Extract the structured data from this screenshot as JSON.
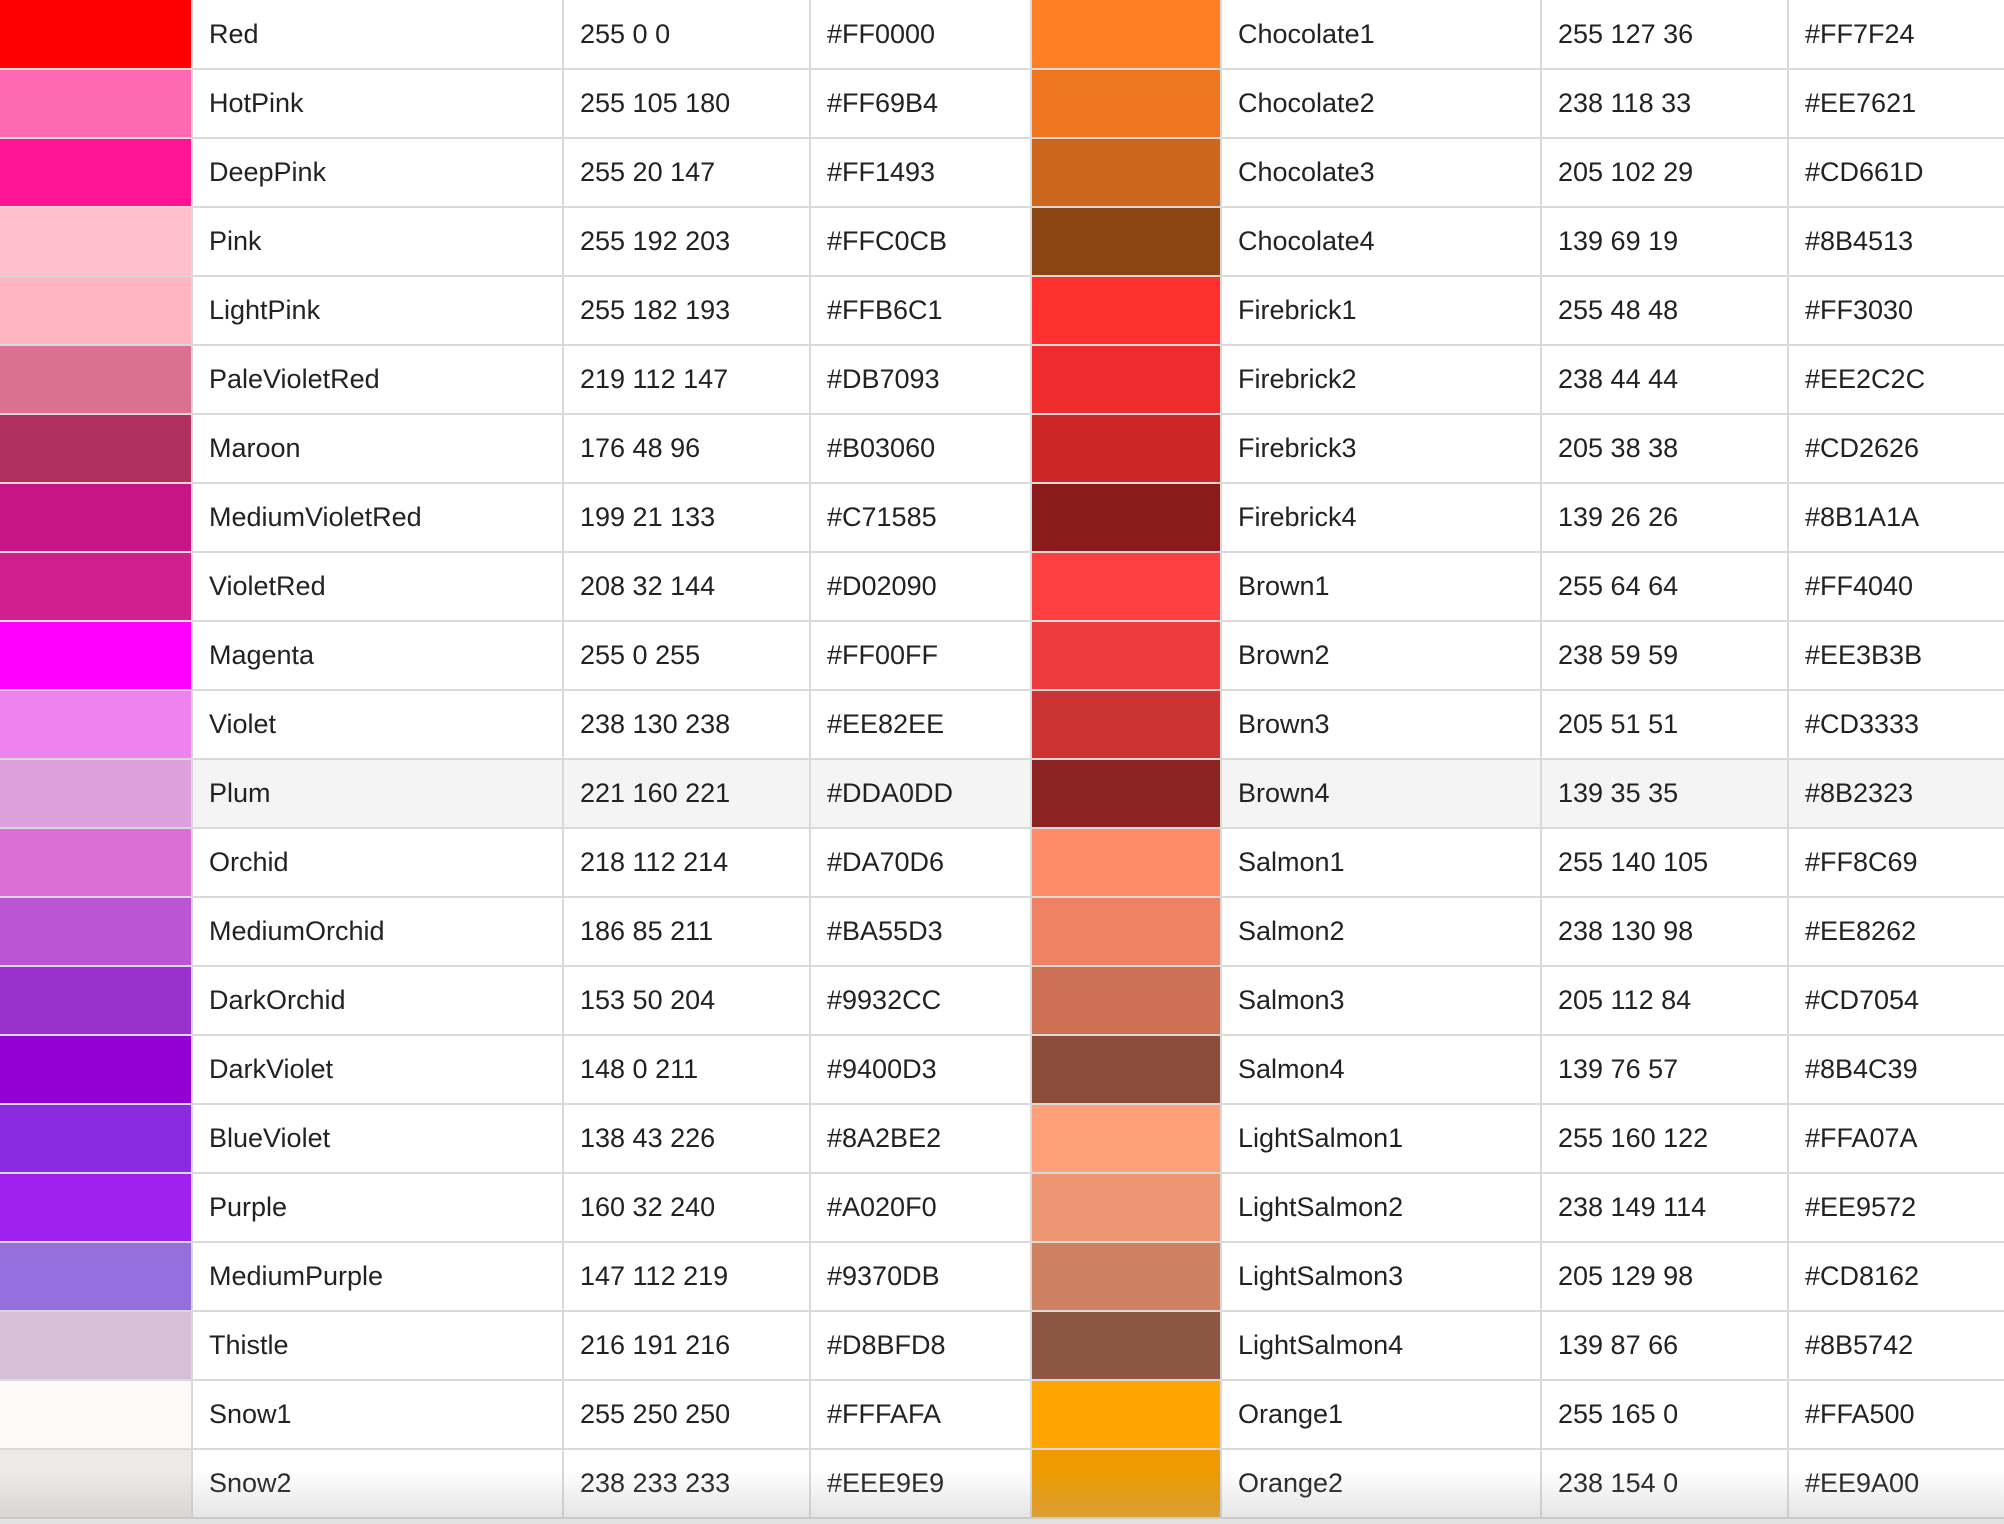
{
  "rows": [
    {
      "l_name": "Red",
      "l_rgb": "255 0 0",
      "l_hex": "#FF0000",
      "r_name": "Chocolate1",
      "r_rgb": "255 127 36",
      "r_hex": "#FF7F24"
    },
    {
      "l_name": "HotPink",
      "l_rgb": "255 105 180",
      "l_hex": "#FF69B4",
      "r_name": "Chocolate2",
      "r_rgb": "238 118 33",
      "r_hex": "#EE7621"
    },
    {
      "l_name": "DeepPink",
      "l_rgb": "255 20 147",
      "l_hex": "#FF1493",
      "r_name": "Chocolate3",
      "r_rgb": "205 102 29",
      "r_hex": "#CD661D"
    },
    {
      "l_name": "Pink",
      "l_rgb": "255 192 203",
      "l_hex": "#FFC0CB",
      "r_name": "Chocolate4",
      "r_rgb": "139 69 19",
      "r_hex": "#8B4513"
    },
    {
      "l_name": "LightPink",
      "l_rgb": "255 182 193",
      "l_hex": "#FFB6C1",
      "r_name": "Firebrick1",
      "r_rgb": "255 48 48",
      "r_hex": "#FF3030"
    },
    {
      "l_name": "PaleVioletRed",
      "l_rgb": "219 112 147",
      "l_hex": "#DB7093",
      "r_name": "Firebrick2",
      "r_rgb": "238 44 44",
      "r_hex": "#EE2C2C"
    },
    {
      "l_name": "Maroon",
      "l_rgb": "176 48 96",
      "l_hex": "#B03060",
      "r_name": "Firebrick3",
      "r_rgb": "205 38 38",
      "r_hex": "#CD2626"
    },
    {
      "l_name": "MediumVioletRed",
      "l_rgb": "199 21 133",
      "l_hex": "#C71585",
      "r_name": "Firebrick4",
      "r_rgb": "139 26 26",
      "r_hex": "#8B1A1A"
    },
    {
      "l_name": "VioletRed",
      "l_rgb": "208 32 144",
      "l_hex": "#D02090",
      "r_name": "Brown1",
      "r_rgb": "255 64 64",
      "r_hex": "#FF4040"
    },
    {
      "l_name": "Magenta",
      "l_rgb": "255 0 255",
      "l_hex": "#FF00FF",
      "r_name": "Brown2",
      "r_rgb": "238 59 59",
      "r_hex": "#EE3B3B"
    },
    {
      "l_name": "Violet",
      "l_rgb": "238 130 238",
      "l_hex": "#EE82EE",
      "r_name": "Brown3",
      "r_rgb": "205 51 51",
      "r_hex": "#CD3333"
    },
    {
      "l_name": "Plum",
      "l_rgb": "221 160 221",
      "l_hex": "#DDA0DD",
      "r_name": "Brown4",
      "r_rgb": "139 35 35",
      "r_hex": "#8B2323",
      "highlight": true
    },
    {
      "l_name": "Orchid",
      "l_rgb": "218 112 214",
      "l_hex": "#DA70D6",
      "r_name": "Salmon1",
      "r_rgb": "255 140 105",
      "r_hex": "#FF8C69"
    },
    {
      "l_name": "MediumOrchid",
      "l_rgb": "186 85 211",
      "l_hex": "#BA55D3",
      "r_name": "Salmon2",
      "r_rgb": "238 130 98",
      "r_hex": "#EE8262"
    },
    {
      "l_name": "DarkOrchid",
      "l_rgb": "153 50 204",
      "l_hex": "#9932CC",
      "r_name": "Salmon3",
      "r_rgb": "205 112 84",
      "r_hex": "#CD7054"
    },
    {
      "l_name": "DarkViolet",
      "l_rgb": "148 0 211",
      "l_hex": "#9400D3",
      "r_name": "Salmon4",
      "r_rgb": "139 76 57",
      "r_hex": "#8B4C39"
    },
    {
      "l_name": "BlueViolet",
      "l_rgb": "138 43 226",
      "l_hex": "#8A2BE2",
      "r_name": "LightSalmon1",
      "r_rgb": "255 160 122",
      "r_hex": "#FFA07A"
    },
    {
      "l_name": "Purple",
      "l_rgb": "160 32 240",
      "l_hex": "#A020F0",
      "r_name": "LightSalmon2",
      "r_rgb": "238 149 114",
      "r_hex": "#EE9572"
    },
    {
      "l_name": "MediumPurple",
      "l_rgb": "147 112 219",
      "l_hex": "#9370DB",
      "r_name": "LightSalmon3",
      "r_rgb": "205 129 98",
      "r_hex": "#CD8162"
    },
    {
      "l_name": "Thistle",
      "l_rgb": "216 191 216",
      "l_hex": "#D8BFD8",
      "r_name": "LightSalmon4",
      "r_rgb": "139 87 66",
      "r_hex": "#8B5742"
    },
    {
      "l_name": "Snow1",
      "l_rgb": "255 250 250",
      "l_hex": "#FFFAFA",
      "r_name": "Orange1",
      "r_rgb": "255 165 0",
      "r_hex": "#FFA500"
    },
    {
      "l_name": "Snow2",
      "l_rgb": "238 233 233",
      "l_hex": "#EEE9E9",
      "r_name": "Orange2",
      "r_rgb": "238 154 0",
      "r_hex": "#EE9A00"
    }
  ]
}
